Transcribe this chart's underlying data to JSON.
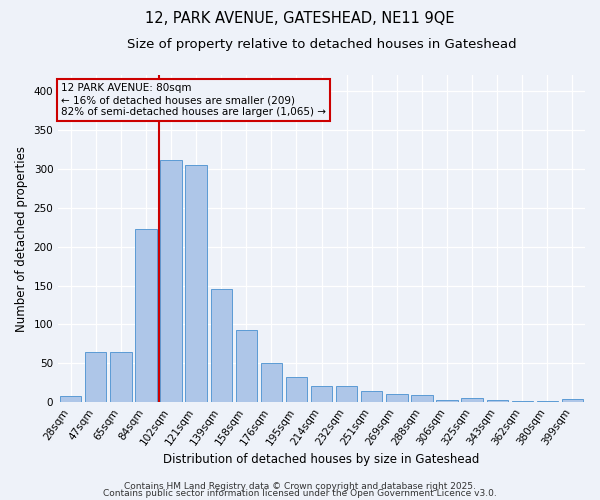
{
  "title_line1": "12, PARK AVENUE, GATESHEAD, NE11 9QE",
  "title_line2": "Size of property relative to detached houses in Gateshead",
  "xlabel": "Distribution of detached houses by size in Gateshead",
  "ylabel": "Number of detached properties",
  "categories": [
    "28sqm",
    "47sqm",
    "65sqm",
    "84sqm",
    "102sqm",
    "121sqm",
    "139sqm",
    "158sqm",
    "176sqm",
    "195sqm",
    "214sqm",
    "232sqm",
    "251sqm",
    "269sqm",
    "288sqm",
    "306sqm",
    "325sqm",
    "343sqm",
    "362sqm",
    "380sqm",
    "399sqm"
  ],
  "values": [
    8,
    65,
    65,
    222,
    311,
    305,
    145,
    93,
    50,
    33,
    21,
    21,
    15,
    11,
    10,
    3,
    5,
    3,
    2,
    2,
    4
  ],
  "bar_color": "#aec6e8",
  "bar_edge_color": "#5b9bd5",
  "vline_color": "#cc0000",
  "vline_x": 3.5,
  "annotation_text": "12 PARK AVENUE: 80sqm\n← 16% of detached houses are smaller (209)\n82% of semi-detached houses are larger (1,065) →",
  "annotation_box_color": "#cc0000",
  "annotation_text_color": "#000000",
  "ylim": [
    0,
    420
  ],
  "yticks": [
    0,
    50,
    100,
    150,
    200,
    250,
    300,
    350,
    400
  ],
  "footer_line1": "Contains HM Land Registry data © Crown copyright and database right 2025.",
  "footer_line2": "Contains public sector information licensed under the Open Government Licence v3.0.",
  "background_color": "#eef2f9",
  "grid_color": "#ffffff",
  "title_fontsize": 10.5,
  "subtitle_fontsize": 9.5,
  "axis_label_fontsize": 8.5,
  "tick_fontsize": 7.5,
  "footer_fontsize": 6.5,
  "annotation_fontsize": 7.5
}
